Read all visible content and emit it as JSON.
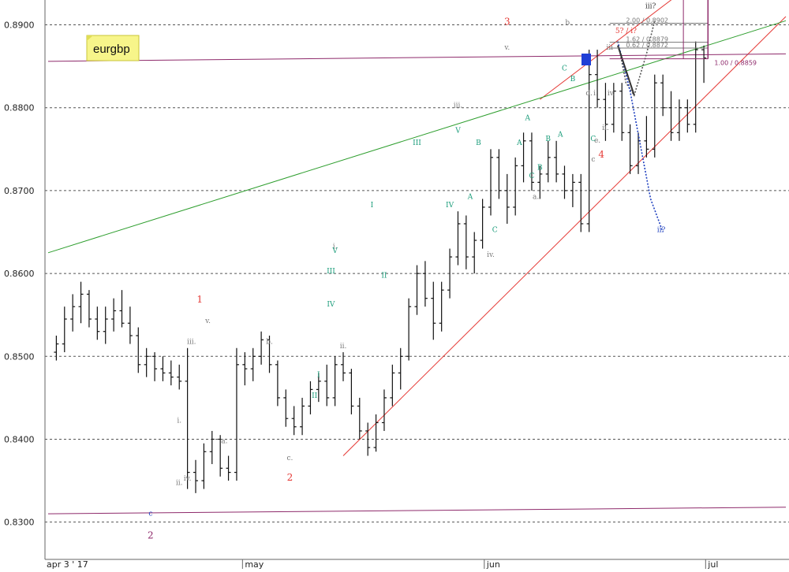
{
  "chart_data": {
    "type": "candlestick",
    "symbol": "eurgbp",
    "ylim": [
      0.8255,
      0.893
    ],
    "y_ticks": [
      "0.8900",
      "0.8800",
      "0.8700",
      "0.8600",
      "0.8500",
      "0.8400",
      "0.8300"
    ],
    "y_tick_values": [
      0.89,
      0.88,
      0.87,
      0.86,
      0.85,
      0.84,
      0.83
    ],
    "x_ticks": [
      "apr 3 ' 17",
      "may",
      "jun",
      "jul"
    ],
    "grid": "horizontal-dashed",
    "bars": [
      [
        1,
        0.8505,
        0.8525,
        0.8495,
        0.8515
      ],
      [
        2,
        0.8515,
        0.856,
        0.8505,
        0.8545
      ],
      [
        3,
        0.8545,
        0.8575,
        0.853,
        0.856
      ],
      [
        4,
        0.856,
        0.859,
        0.854,
        0.8575
      ],
      [
        5,
        0.8575,
        0.858,
        0.8535,
        0.8545
      ],
      [
        6,
        0.8545,
        0.856,
        0.852,
        0.853
      ],
      [
        7,
        0.853,
        0.856,
        0.8515,
        0.8545
      ],
      [
        8,
        0.8545,
        0.857,
        0.853,
        0.8555
      ],
      [
        9,
        0.8555,
        0.858,
        0.8535,
        0.854
      ],
      [
        10,
        0.854,
        0.856,
        0.8515,
        0.8525
      ],
      [
        11,
        0.8525,
        0.8535,
        0.848,
        0.849
      ],
      [
        12,
        0.849,
        0.851,
        0.8475,
        0.85
      ],
      [
        13,
        0.85,
        0.8505,
        0.847,
        0.8485
      ],
      [
        14,
        0.8485,
        0.85,
        0.847,
        0.848
      ],
      [
        15,
        0.848,
        0.8495,
        0.8465,
        0.8475
      ],
      [
        16,
        0.8475,
        0.849,
        0.846,
        0.847
      ],
      [
        17,
        0.847,
        0.851,
        0.834,
        0.836
      ],
      [
        18,
        0.836,
        0.8375,
        0.8335,
        0.835
      ],
      [
        19,
        0.835,
        0.8395,
        0.834,
        0.8385
      ],
      [
        20,
        0.8385,
        0.841,
        0.837,
        0.84
      ],
      [
        21,
        0.84,
        0.8405,
        0.8355,
        0.8365
      ],
      [
        22,
        0.8365,
        0.838,
        0.835,
        0.836
      ],
      [
        23,
        0.836,
        0.851,
        0.835,
        0.849
      ],
      [
        24,
        0.849,
        0.8505,
        0.8465,
        0.8485
      ],
      [
        25,
        0.8485,
        0.851,
        0.847,
        0.85
      ],
      [
        26,
        0.85,
        0.853,
        0.849,
        0.852
      ],
      [
        27,
        0.852,
        0.8525,
        0.848,
        0.849
      ],
      [
        28,
        0.849,
        0.8495,
        0.844,
        0.845
      ],
      [
        29,
        0.845,
        0.846,
        0.8415,
        0.8425
      ],
      [
        30,
        0.8425,
        0.844,
        0.8405,
        0.8415
      ],
      [
        31,
        0.8415,
        0.845,
        0.8405,
        0.844
      ],
      [
        32,
        0.844,
        0.847,
        0.843,
        0.846
      ],
      [
        33,
        0.846,
        0.848,
        0.8445,
        0.847
      ],
      [
        34,
        0.847,
        0.849,
        0.844,
        0.845
      ],
      [
        35,
        0.845,
        0.85,
        0.844,
        0.849
      ],
      [
        36,
        0.849,
        0.8505,
        0.847,
        0.848
      ],
      [
        37,
        0.848,
        0.8485,
        0.843,
        0.844
      ],
      [
        38,
        0.844,
        0.845,
        0.84,
        0.841
      ],
      [
        39,
        0.841,
        0.842,
        0.838,
        0.839
      ],
      [
        40,
        0.839,
        0.843,
        0.8385,
        0.842
      ],
      [
        41,
        0.842,
        0.846,
        0.841,
        0.845
      ],
      [
        42,
        0.845,
        0.849,
        0.844,
        0.848
      ],
      [
        43,
        0.848,
        0.851,
        0.846,
        0.85
      ],
      [
        44,
        0.85,
        0.857,
        0.8495,
        0.856
      ],
      [
        45,
        0.856,
        0.861,
        0.855,
        0.86
      ],
      [
        46,
        0.86,
        0.8615,
        0.856,
        0.857
      ],
      [
        47,
        0.857,
        0.859,
        0.852,
        0.854
      ],
      [
        48,
        0.854,
        0.859,
        0.853,
        0.858
      ],
      [
        49,
        0.858,
        0.863,
        0.857,
        0.862
      ],
      [
        50,
        0.862,
        0.8675,
        0.861,
        0.866
      ],
      [
        51,
        0.866,
        0.867,
        0.8605,
        0.862
      ],
      [
        52,
        0.862,
        0.865,
        0.86,
        0.864
      ],
      [
        53,
        0.864,
        0.869,
        0.863,
        0.868
      ],
      [
        54,
        0.868,
        0.875,
        0.867,
        0.874
      ],
      [
        55,
        0.874,
        0.875,
        0.869,
        0.87
      ],
      [
        56,
        0.87,
        0.872,
        0.866,
        0.868
      ],
      [
        57,
        0.868,
        0.874,
        0.867,
        0.873
      ],
      [
        58,
        0.873,
        0.877,
        0.871,
        0.876
      ],
      [
        59,
        0.876,
        0.877,
        0.87,
        0.871
      ],
      [
        60,
        0.871,
        0.873,
        0.869,
        0.872
      ],
      [
        61,
        0.872,
        0.876,
        0.871,
        0.874
      ],
      [
        62,
        0.874,
        0.876,
        0.871,
        0.872
      ],
      [
        63,
        0.872,
        0.873,
        0.869,
        0.87
      ],
      [
        64,
        0.87,
        0.872,
        0.868,
        0.871
      ],
      [
        65,
        0.871,
        0.872,
        0.865,
        0.866
      ],
      [
        66,
        0.866,
        0.887,
        0.865,
        0.884
      ],
      [
        67,
        0.884,
        0.887,
        0.88,
        0.881
      ],
      [
        68,
        0.881,
        0.883,
        0.876,
        0.878
      ],
      [
        69,
        0.878,
        0.883,
        0.877,
        0.882
      ],
      [
        70,
        0.882,
        0.883,
        0.876,
        0.877
      ],
      [
        71,
        0.877,
        0.878,
        0.872,
        0.873
      ],
      [
        72,
        0.873,
        0.877,
        0.872,
        0.876
      ],
      [
        73,
        0.876,
        0.879,
        0.874,
        0.875
      ],
      [
        74,
        0.875,
        0.884,
        0.874,
        0.883
      ],
      [
        75,
        0.883,
        0.884,
        0.879,
        0.88
      ],
      [
        76,
        0.88,
        0.882,
        0.876,
        0.877
      ],
      [
        77,
        0.877,
        0.881,
        0.876,
        0.88
      ],
      [
        78,
        0.88,
        0.881,
        0.877,
        0.878
      ],
      [
        79,
        0.878,
        0.888,
        0.877,
        0.887
      ],
      [
        80,
        0.887,
        0.8875,
        0.883,
        0.886
      ]
    ],
    "lines": [
      {
        "name": "upper-channel",
        "color": "#e53935",
        "from": [
          36,
          0.838
        ],
        "to": [
          90,
          0.891
        ]
      },
      {
        "name": "upper-channel-parallel",
        "color": "#e53935",
        "from": [
          60,
          0.881
        ],
        "to": [
          80,
          0.896
        ]
      },
      {
        "name": "trendline-green",
        "color": "#2e9e2e",
        "from": [
          0,
          0.8625
        ],
        "to": [
          90,
          0.8905
        ]
      },
      {
        "name": "resistance-line",
        "color": "#8e2a6b",
        "from": [
          0,
          0.8856
        ],
        "to": [
          90,
          0.8865
        ]
      },
      {
        "name": "support-line",
        "color": "#8e2a6b",
        "from": [
          0,
          0.831
        ],
        "to": [
          90,
          0.8318
        ]
      }
    ],
    "labels": [
      {
        "text": "1",
        "x": 18.5,
        "y": 0.8565,
        "color": "#e53935"
      },
      {
        "text": "2",
        "x": 12.5,
        "y": 0.828,
        "color": "#8e2a6b"
      },
      {
        "text": "c",
        "x": 12.5,
        "y": 0.8308,
        "color": "#1e3fbf"
      },
      {
        "text": "2",
        "x": 29.5,
        "y": 0.835,
        "color": "#e53935"
      },
      {
        "text": "3",
        "x": 56.0,
        "y": 0.89,
        "color": "#e53935"
      },
      {
        "text": "4",
        "x": 67.5,
        "y": 0.874,
        "color": "#e53935"
      },
      {
        "text": "5? / i?",
        "x": 70.5,
        "y": 0.889,
        "color": "#e53935"
      },
      {
        "text": "v.",
        "x": 19.5,
        "y": 0.854,
        "color": "#777777"
      },
      {
        "text": "iii.",
        "x": 17.5,
        "y": 0.8515,
        "color": "#777777"
      },
      {
        "text": "i.",
        "x": 16.0,
        "y": 0.842,
        "color": "#777777"
      },
      {
        "text": "ii.",
        "x": 16.0,
        "y": 0.8345,
        "color": "#777777"
      },
      {
        "text": "iv.",
        "x": 17.0,
        "y": 0.835,
        "color": "#777777"
      },
      {
        "text": "a.",
        "x": 21.5,
        "y": 0.8395,
        "color": "#777777"
      },
      {
        "text": "b.",
        "x": 27.0,
        "y": 0.8515,
        "color": "#777777"
      },
      {
        "text": "c.",
        "x": 29.5,
        "y": 0.8375,
        "color": "#777777"
      },
      {
        "text": "i.",
        "x": 35.0,
        "y": 0.863,
        "color": "#777777"
      },
      {
        "text": "ii.",
        "x": 36.0,
        "y": 0.851,
        "color": "#777777"
      },
      {
        "text": "iii.",
        "x": 50.0,
        "y": 0.88,
        "color": "#777777"
      },
      {
        "text": "iv.",
        "x": 54.0,
        "y": 0.862,
        "color": "#777777"
      },
      {
        "text": "v.",
        "x": 56.0,
        "y": 0.887,
        "color": "#777777"
      },
      {
        "text": "a.",
        "x": 59.5,
        "y": 0.869,
        "color": "#777777"
      },
      {
        "text": "b.",
        "x": 63.5,
        "y": 0.89,
        "color": "#777777"
      },
      {
        "text": "c",
        "x": 66.5,
        "y": 0.8735,
        "color": "#777777"
      },
      {
        "text": "d.",
        "x": 66.0,
        "y": 0.8815,
        "color": "#777777"
      },
      {
        "text": "e.",
        "x": 67.0,
        "y": 0.8758,
        "color": "#777777"
      },
      {
        "text": "i.",
        "x": 66.8,
        "y": 0.8815,
        "color": "#777777"
      },
      {
        "text": "ii.",
        "x": 68.0,
        "y": 0.8773,
        "color": "#777777"
      },
      {
        "text": "iii",
        "x": 68.5,
        "y": 0.887,
        "color": "#777777"
      },
      {
        "text": "iv.",
        "x": 68.7,
        "y": 0.8815,
        "color": "#777777"
      },
      {
        "text": "I",
        "x": 33.0,
        "y": 0.8475,
        "color": "#1a9c7a"
      },
      {
        "text": "II",
        "x": 32.5,
        "y": 0.845,
        "color": "#1a9c7a"
      },
      {
        "text": "III",
        "x": 34.5,
        "y": 0.86,
        "color": "#1a9c7a"
      },
      {
        "text": "IV",
        "x": 34.5,
        "y": 0.856,
        "color": "#1a9c7a"
      },
      {
        "text": "V",
        "x": 35.0,
        "y": 0.8625,
        "color": "#1a9c7a"
      },
      {
        "text": "I",
        "x": 39.5,
        "y": 0.868,
        "color": "#1a9c7a"
      },
      {
        "text": "II",
        "x": 41.0,
        "y": 0.8595,
        "color": "#1a9c7a"
      },
      {
        "text": "III",
        "x": 45.0,
        "y": 0.8755,
        "color": "#1a9c7a"
      },
      {
        "text": "IV",
        "x": 49.0,
        "y": 0.868,
        "color": "#1a9c7a"
      },
      {
        "text": "V",
        "x": 50.0,
        "y": 0.877,
        "color": "#1a9c7a"
      },
      {
        "text": "A",
        "x": 51.5,
        "y": 0.869,
        "color": "#1a9c7a"
      },
      {
        "text": "B",
        "x": 52.5,
        "y": 0.8755,
        "color": "#1a9c7a"
      },
      {
        "text": "C",
        "x": 54.5,
        "y": 0.865,
        "color": "#1a9c7a"
      },
      {
        "text": "A",
        "x": 57.5,
        "y": 0.8755,
        "color": "#1a9c7a"
      },
      {
        "text": "A",
        "x": 58.5,
        "y": 0.8785,
        "color": "#1a9c7a"
      },
      {
        "text": "B",
        "x": 60.0,
        "y": 0.8725,
        "color": "#1a9c7a"
      },
      {
        "text": "C",
        "x": 59.0,
        "y": 0.8715,
        "color": "#1a9c7a"
      },
      {
        "text": "B",
        "x": 61.0,
        "y": 0.876,
        "color": "#1a9c7a"
      },
      {
        "text": "A",
        "x": 62.5,
        "y": 0.8765,
        "color": "#1a9c7a"
      },
      {
        "text": "C",
        "x": 63.0,
        "y": 0.8845,
        "color": "#1a9c7a"
      },
      {
        "text": "B",
        "x": 64.0,
        "y": 0.8832,
        "color": "#1a9c7a"
      },
      {
        "text": "C",
        "x": 66.5,
        "y": 0.876,
        "color": "#1a9c7a"
      },
      {
        "text": "iii?",
        "x": 73.5,
        "y": 0.892,
        "color": "#333333"
      },
      {
        "text": "ii?",
        "x": 74.8,
        "y": 0.865,
        "color": "#1e3fbf"
      }
    ],
    "fib_levels": [
      {
        "text": "1.00 / 0.8859",
        "y": 0.8859,
        "color": "#8e2a6b"
      },
      {
        "text": "0.62 / 0.8872",
        "y": 0.8872,
        "color": "#777777"
      },
      {
        "text": "1.62 / 0.8879",
        "y": 0.8879,
        "color": "#777777"
      },
      {
        "text": "2.00 / 0.8902",
        "y": 0.8902,
        "color": "#777777"
      }
    ],
    "projections": [
      {
        "name": "projection-iii",
        "color": "#555555",
        "points": [
          [
            69.5,
            0.888
          ],
          [
            70.5,
            0.883
          ],
          [
            71.5,
            0.8815
          ],
          [
            73.0,
            0.8865
          ],
          [
            74.0,
            0.8905
          ]
        ]
      },
      {
        "name": "projection-ii",
        "color": "#1e3fbf",
        "points": [
          [
            69.5,
            0.888
          ],
          [
            71.0,
            0.882
          ],
          [
            73.5,
            0.869
          ],
          [
            75.0,
            0.865
          ]
        ]
      },
      {
        "name": "projection-solid",
        "color": "#333333",
        "points": [
          [
            69.5,
            0.8875
          ],
          [
            71.5,
            0.8815
          ]
        ]
      }
    ]
  }
}
